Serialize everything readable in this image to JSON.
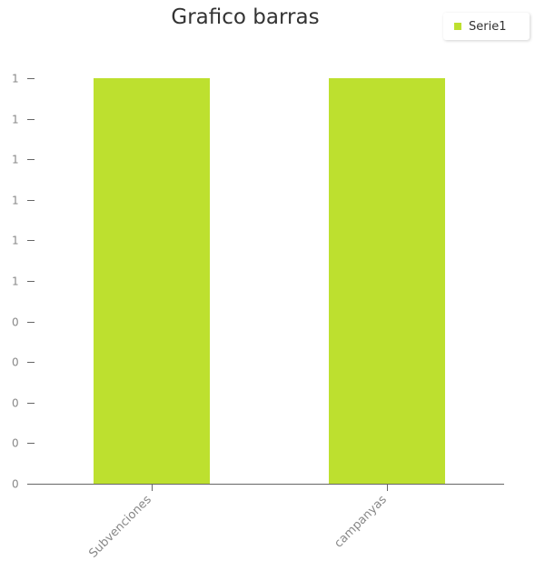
{
  "chart_data": {
    "type": "bar",
    "title": "Grafico barras",
    "categories": [
      "Subvenciones",
      "campanyas"
    ],
    "series": [
      {
        "name": "Serie1",
        "values": [
          1,
          1
        ],
        "color": "#bde02f"
      }
    ],
    "ylim": [
      0,
      1
    ],
    "yticks": [
      0,
      0.1,
      0.2,
      0.3,
      0.4,
      0.5,
      0.6,
      0.7,
      0.8,
      0.9,
      1
    ],
    "ytick_labels": [
      "0",
      "0",
      "0",
      "0",
      "0",
      "1",
      "1",
      "1",
      "1",
      "1",
      "1"
    ],
    "grid": false,
    "legend": "top-right",
    "axis_color": "#666666",
    "label_color": "#888888"
  }
}
